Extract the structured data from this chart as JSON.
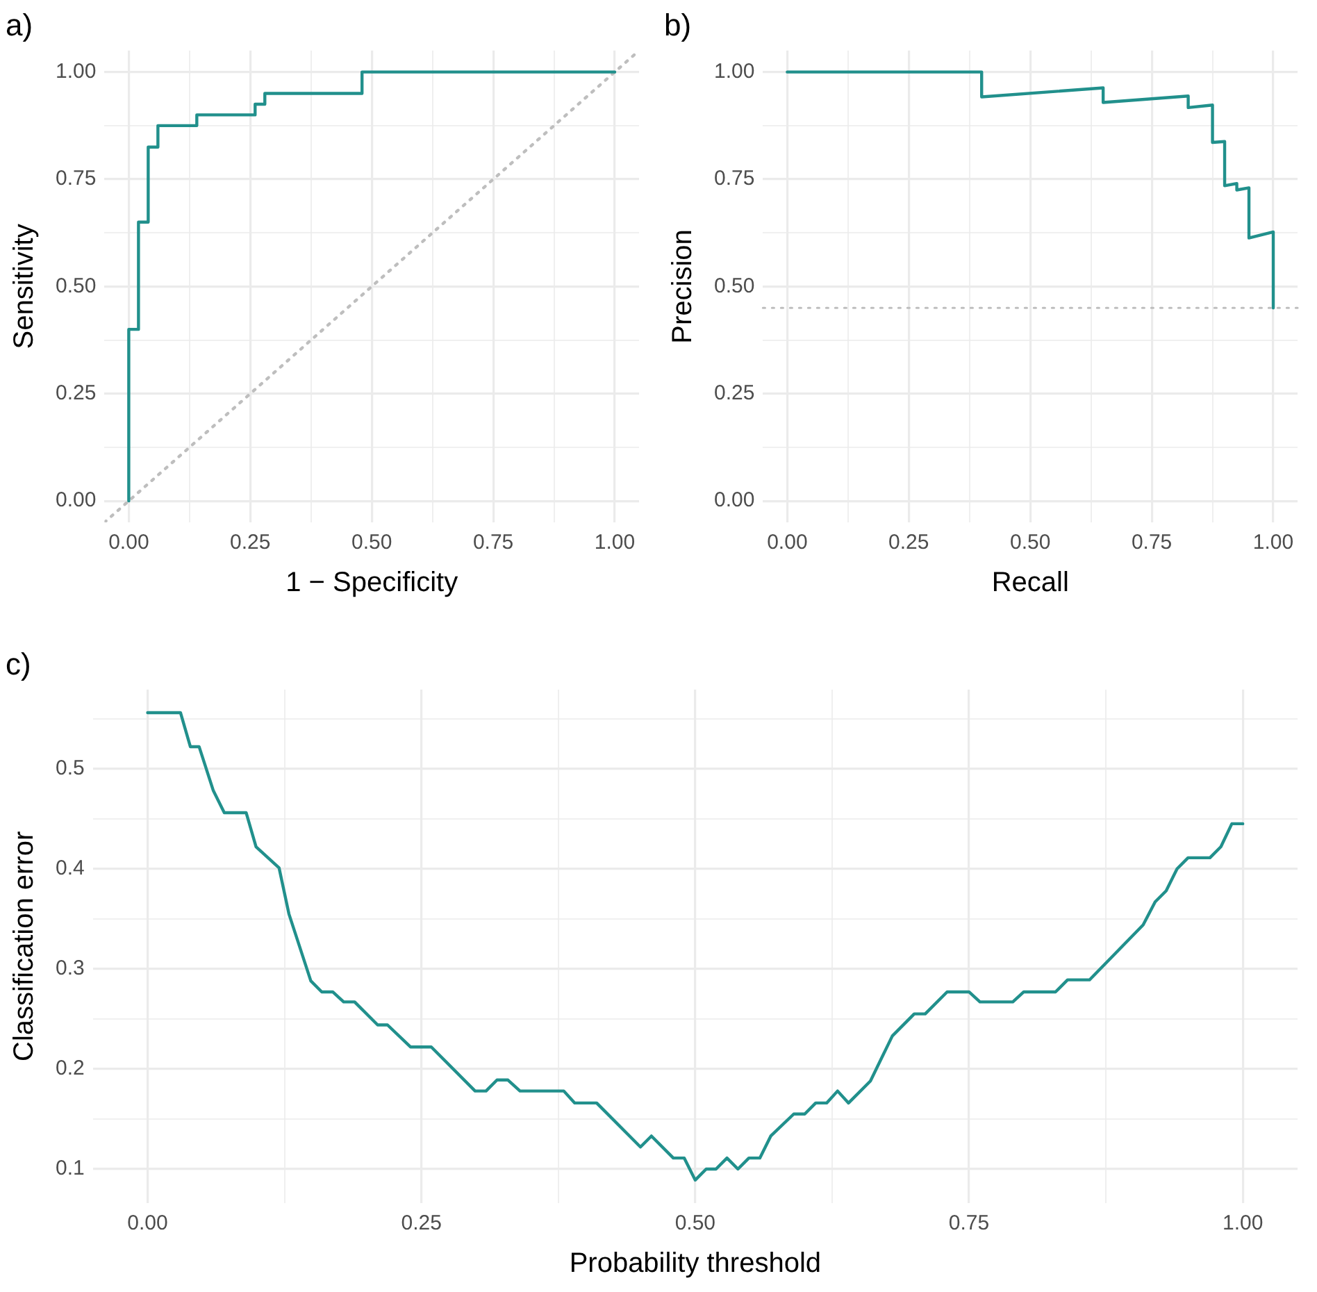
{
  "chart_data": [
    {
      "type": "line",
      "title": "a)",
      "xlabel": "1 − Specificity",
      "ylabel": "Sensitivity",
      "grid": true,
      "series": [
        {
          "color": "#21908c",
          "x": [
            0,
            0,
            0.02,
            0.02,
            0.04,
            0.04,
            0.06,
            0.06,
            0.14,
            0.14,
            0.26,
            0.26,
            0.28,
            0.28,
            0.48,
            0.48,
            1
          ],
          "values": [
            0,
            0.4,
            0.4,
            0.65,
            0.65,
            0.825,
            0.825,
            0.875,
            0.875,
            0.9,
            0.9,
            0.925,
            0.925,
            0.95,
            0.95,
            1,
            1
          ]
        },
        {
          "color": "#bebebe",
          "line_style": "dotted",
          "x": [
            -0.05,
            1.05
          ],
          "values": [
            -0.05,
            1.05
          ]
        }
      ],
      "xlim": [
        -0.05,
        1.05
      ],
      "ylim": [
        -0.05,
        1.05
      ],
      "xticks": [
        {
          "value": 0,
          "label": "0.00"
        },
        {
          "value": 0.125,
          "label": null
        },
        {
          "value": 0.25,
          "label": "0.25"
        },
        {
          "value": 0.375,
          "label": null
        },
        {
          "value": 0.5,
          "label": "0.50"
        },
        {
          "value": 0.625,
          "label": null
        },
        {
          "value": 0.75,
          "label": "0.75"
        },
        {
          "value": 0.875,
          "label": null
        },
        {
          "value": 1,
          "label": "1.00"
        }
      ],
      "yticks": [
        {
          "value": 0,
          "label": "0.00"
        },
        {
          "value": 0.125,
          "label": null
        },
        {
          "value": 0.25,
          "label": "0.25"
        },
        {
          "value": 0.375,
          "label": null
        },
        {
          "value": 0.5,
          "label": "0.50"
        },
        {
          "value": 0.625,
          "label": null
        },
        {
          "value": 0.75,
          "label": "0.75"
        },
        {
          "value": 0.875,
          "label": null
        },
        {
          "value": 1,
          "label": "1.00"
        }
      ]
    },
    {
      "type": "line",
      "title": "b)",
      "xlabel": "Recall",
      "ylabel": "Precision",
      "grid": true,
      "series": [
        {
          "color": "#21908c",
          "x": [
            0,
            0.4,
            0.4,
            0.65,
            0.65,
            0.825,
            0.825,
            0.875,
            0.875,
            0.9,
            0.9,
            0.925,
            0.925,
            0.95,
            0.95,
            1,
            1
          ],
          "values": [
            1,
            1,
            0.942,
            0.963,
            0.929,
            0.944,
            0.917,
            0.923,
            0.836,
            0.838,
            0.735,
            0.74,
            0.725,
            0.73,
            0.613,
            0.627,
            0.45
          ]
        }
      ],
      "ref_lines": [
        {
          "axis": "y",
          "value": 0.45,
          "color": "#bebebe",
          "line_style": "dotted"
        }
      ],
      "xlim": [
        -0.05,
        1.05
      ],
      "ylim": [
        -0.05,
        1.05
      ],
      "xticks": [
        {
          "value": 0,
          "label": "0.00"
        },
        {
          "value": 0.125,
          "label": null
        },
        {
          "value": 0.25,
          "label": "0.25"
        },
        {
          "value": 0.375,
          "label": null
        },
        {
          "value": 0.5,
          "label": "0.50"
        },
        {
          "value": 0.625,
          "label": null
        },
        {
          "value": 0.75,
          "label": "0.75"
        },
        {
          "value": 0.875,
          "label": null
        },
        {
          "value": 1,
          "label": "1.00"
        }
      ],
      "yticks": [
        {
          "value": 0,
          "label": "0.00"
        },
        {
          "value": 0.125,
          "label": null
        },
        {
          "value": 0.25,
          "label": "0.25"
        },
        {
          "value": 0.375,
          "label": null
        },
        {
          "value": 0.5,
          "label": "0.50"
        },
        {
          "value": 0.625,
          "label": null
        },
        {
          "value": 0.75,
          "label": "0.75"
        },
        {
          "value": 0.875,
          "label": null
        },
        {
          "value": 1,
          "label": "1.00"
        }
      ]
    },
    {
      "type": "line",
      "title": "c)",
      "xlabel": "Probability threshold",
      "ylabel": "Classification error",
      "grid": true,
      "series": [
        {
          "color": "#21908c",
          "x": [
            0,
            0.03,
            0.039,
            0.047,
            0.06,
            0.07,
            0.09,
            0.099,
            0.12,
            0.129,
            0.149,
            0.159,
            0.169,
            0.179,
            0.189,
            0.21,
            0.219,
            0.24,
            0.259,
            0.299,
            0.309,
            0.319,
            0.329,
            0.34,
            0.38,
            0.39,
            0.41,
            0.45,
            0.46,
            0.48,
            0.49,
            0.5,
            0.51,
            0.519,
            0.529,
            0.539,
            0.549,
            0.559,
            0.569,
            0.59,
            0.6,
            0.61,
            0.62,
            0.63,
            0.64,
            0.66,
            0.68,
            0.7,
            0.71,
            0.73,
            0.75,
            0.76,
            0.79,
            0.8,
            0.829,
            0.84,
            0.86,
            0.909,
            0.92,
            0.93,
            0.94,
            0.95,
            0.97,
            0.98,
            0.99,
            1
          ],
          "values": [
            0.556,
            0.556,
            0.522,
            0.522,
            0.478,
            0.456,
            0.456,
            0.422,
            0.401,
            0.355,
            0.288,
            0.277,
            0.277,
            0.267,
            0.267,
            0.244,
            0.244,
            0.222,
            0.222,
            0.178,
            0.178,
            0.189,
            0.189,
            0.178,
            0.178,
            0.166,
            0.166,
            0.122,
            0.133,
            0.111,
            0.111,
            0.089,
            0.1,
            0.1,
            0.111,
            0.1,
            0.111,
            0.111,
            0.133,
            0.155,
            0.155,
            0.166,
            0.166,
            0.178,
            0.166,
            0.188,
            0.233,
            0.255,
            0.255,
            0.277,
            0.277,
            0.267,
            0.267,
            0.277,
            0.277,
            0.289,
            0.289,
            0.344,
            0.367,
            0.378,
            0.4,
            0.411,
            0.411,
            0.422,
            0.445,
            0.445
          ]
        }
      ],
      "xlim": [
        -0.05,
        1.05
      ],
      "ylim": [
        0.066,
        0.579
      ],
      "xticks": [
        {
          "value": 0,
          "label": "0.00"
        },
        {
          "value": 0.125,
          "label": null
        },
        {
          "value": 0.25,
          "label": "0.25"
        },
        {
          "value": 0.375,
          "label": null
        },
        {
          "value": 0.5,
          "label": "0.50"
        },
        {
          "value": 0.625,
          "label": null
        },
        {
          "value": 0.75,
          "label": "0.75"
        },
        {
          "value": 0.875,
          "label": null
        },
        {
          "value": 1,
          "label": "1.00"
        }
      ],
      "yticks": [
        0.1,
        {
          "value": 0.15,
          "label": null
        },
        0.2,
        {
          "value": 0.25,
          "label": null
        },
        0.3,
        {
          "value": 0.35,
          "label": null
        },
        0.4,
        {
          "value": 0.45,
          "label": null
        },
        0.5,
        {
          "value": 0.55,
          "label": null
        }
      ]
    }
  ]
}
